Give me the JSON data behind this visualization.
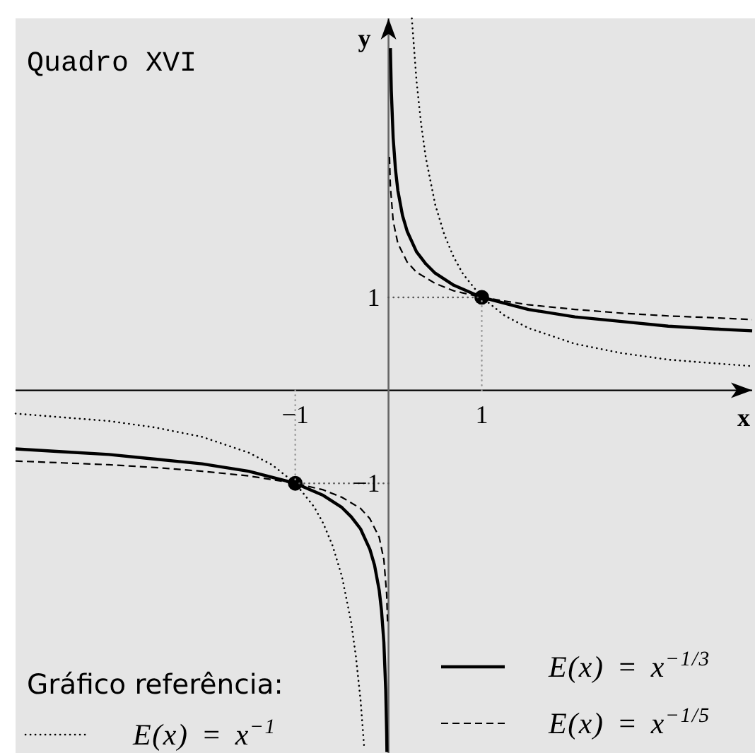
{
  "chart_data": {
    "type": "line",
    "title": "Quadro XVI",
    "xlabel": "x",
    "ylabel": "y",
    "annotations": [
      "Gráfico referência:"
    ],
    "xlim": [
      -4,
      3.9
    ],
    "ylim": [
      -3.9,
      4
    ],
    "xticks": [
      -1,
      1
    ],
    "yticks": [
      -1,
      1
    ],
    "legend": "bottom",
    "series": [
      {
        "name": "E(x) = x$^{−1/3}$",
        "color": "#000000",
        "line_style": "solid",
        "x": [
          0.02,
          0.03,
          0.05,
          0.075,
          0.1,
          0.15,
          0.2,
          0.3,
          0.4,
          0.5,
          0.7,
          1,
          1.5,
          2,
          2.5,
          3,
          3.5,
          3.9
        ],
        "values": [
          3.68,
          3.22,
          2.71,
          2.37,
          2.15,
          1.88,
          1.71,
          1.49,
          1.36,
          1.26,
          1.13,
          1,
          0.87,
          0.79,
          0.74,
          0.69,
          0.66,
          0.64
        ]
      },
      {
        "name": "E(x) = x$^{−1/5}$",
        "color": "#000000",
        "line_style": "dashed",
        "x": [
          0.01,
          0.02,
          0.05,
          0.1,
          0.2,
          0.3,
          0.5,
          0.7,
          1,
          1.5,
          2,
          2.5,
          3,
          3.5,
          3.9
        ],
        "values": [
          2.51,
          2.19,
          1.82,
          1.58,
          1.38,
          1.27,
          1.15,
          1.07,
          1,
          0.92,
          0.87,
          0.83,
          0.8,
          0.78,
          0.76
        ]
      },
      {
        "name": "E(x) = x$^{−1}$",
        "color": "#000000",
        "line_style": "dotted",
        "x": [
          0.25,
          0.3,
          0.35,
          0.4,
          0.5,
          0.6,
          0.7,
          0.8,
          1,
          1.25,
          1.5,
          2,
          2.5,
          3,
          3.5,
          3.9
        ],
        "values": [
          4,
          3.33,
          2.86,
          2.5,
          2,
          1.67,
          1.43,
          1.25,
          1,
          0.8,
          0.67,
          0.5,
          0.4,
          0.33,
          0.29,
          0.26
        ]
      },
      {
        "color": "#000000",
        "line_style": "solid",
        "x": [
          -4,
          -3.5,
          -3,
          -2.5,
          -2,
          -1.5,
          -1,
          -0.7,
          -0.5,
          -0.4,
          -0.3,
          -0.2,
          -0.15,
          -0.1,
          -0.075,
          -0.05,
          -0.03,
          -0.02,
          -0.017
        ],
        "values": [
          -0.63,
          -0.66,
          -0.69,
          -0.74,
          -0.79,
          -0.87,
          -1,
          -1.13,
          -1.26,
          -1.36,
          -1.49,
          -1.71,
          -1.88,
          -2.15,
          -2.37,
          -2.71,
          -3.22,
          -3.68,
          -3.89
        ]
      },
      {
        "color": "#000000",
        "line_style": "dashed",
        "x": [
          -4,
          -3.5,
          -3,
          -2.5,
          -2,
          -1.5,
          -1,
          -0.7,
          -0.5,
          -0.3,
          -0.2,
          -0.1,
          -0.05,
          -0.02,
          -0.01
        ],
        "values": [
          -0.76,
          -0.78,
          -0.8,
          -0.83,
          -0.87,
          -0.92,
          -1,
          -1.07,
          -1.15,
          -1.27,
          -1.38,
          -1.58,
          -1.82,
          -2.19,
          -2.51
        ]
      },
      {
        "color": "#000000",
        "line_style": "dotted",
        "x": [
          -4,
          -3.5,
          -3,
          -2.5,
          -2,
          -1.5,
          -1.25,
          -1,
          -0.8,
          -0.7,
          -0.6,
          -0.5,
          -0.4,
          -0.35,
          -0.3,
          -0.26
        ],
        "values": [
          -0.25,
          -0.29,
          -0.33,
          -0.4,
          -0.5,
          -0.67,
          -0.8,
          -1,
          -1.25,
          -1.43,
          -1.67,
          -2,
          -2.5,
          -2.86,
          -3.33,
          -3.85
        ]
      },
      {
        "color": "#555555",
        "line_style": "dotted",
        "x": [
          0,
          1
        ],
        "values": [
          1,
          1
        ]
      },
      {
        "color": "#999999",
        "line_style": "dotted",
        "x": [
          1,
          1
        ],
        "values": [
          0,
          1
        ]
      },
      {
        "color": "#555555",
        "line_style": "dotted",
        "x": [
          0,
          -1
        ],
        "values": [
          -1,
          -1
        ]
      },
      {
        "color": "#999999",
        "line_style": "dotted",
        "x": [
          -1,
          -1
        ],
        "values": [
          0,
          -1
        ]
      },
      {
        "type": "scatter",
        "marker": "circle",
        "color": "#000000",
        "x": [
          1,
          -1
        ],
        "values": [
          1,
          -1
        ]
      }
    ]
  }
}
